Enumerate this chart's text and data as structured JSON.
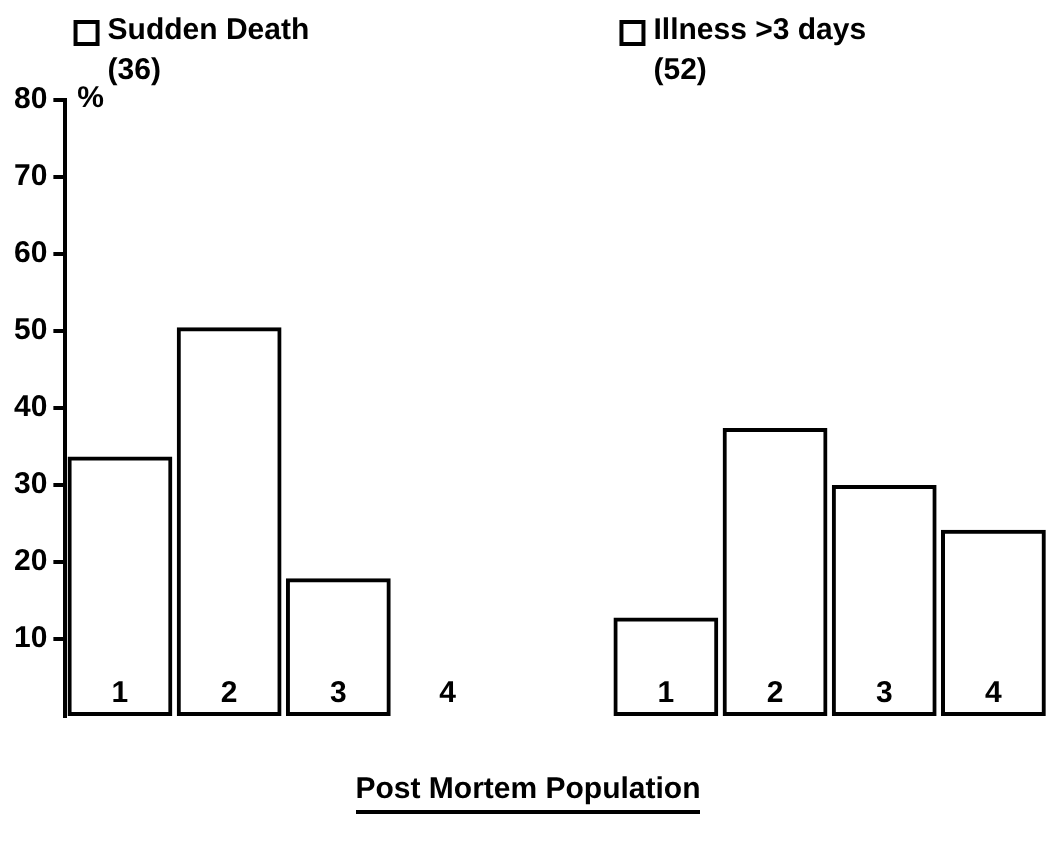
{
  "chart_data": {
    "type": "bar",
    "xlabel": "Post Mortem Population",
    "ylabel": "%",
    "categories": [
      "1",
      "2",
      "3",
      "4",
      null,
      "1",
      "2",
      "3",
      "4"
    ],
    "series": [
      {
        "name": "Sudden Death (36)",
        "color": "#000000",
        "values": [
          33.7,
          50.5,
          17.9,
          0,
          null,
          null,
          null,
          null,
          null
        ]
      },
      {
        "name": "Illness >3 days (52)",
        "color": "#000000",
        "values": [
          null,
          null,
          null,
          null,
          null,
          12.8,
          37.4,
          30,
          24.2
        ]
      }
    ],
    "stacked": true,
    "ylim": [
      0,
      80
    ],
    "yticks": [
      10,
      20,
      30,
      40,
      50,
      60,
      70,
      80
    ],
    "grid": false,
    "legend": "top"
  }
}
